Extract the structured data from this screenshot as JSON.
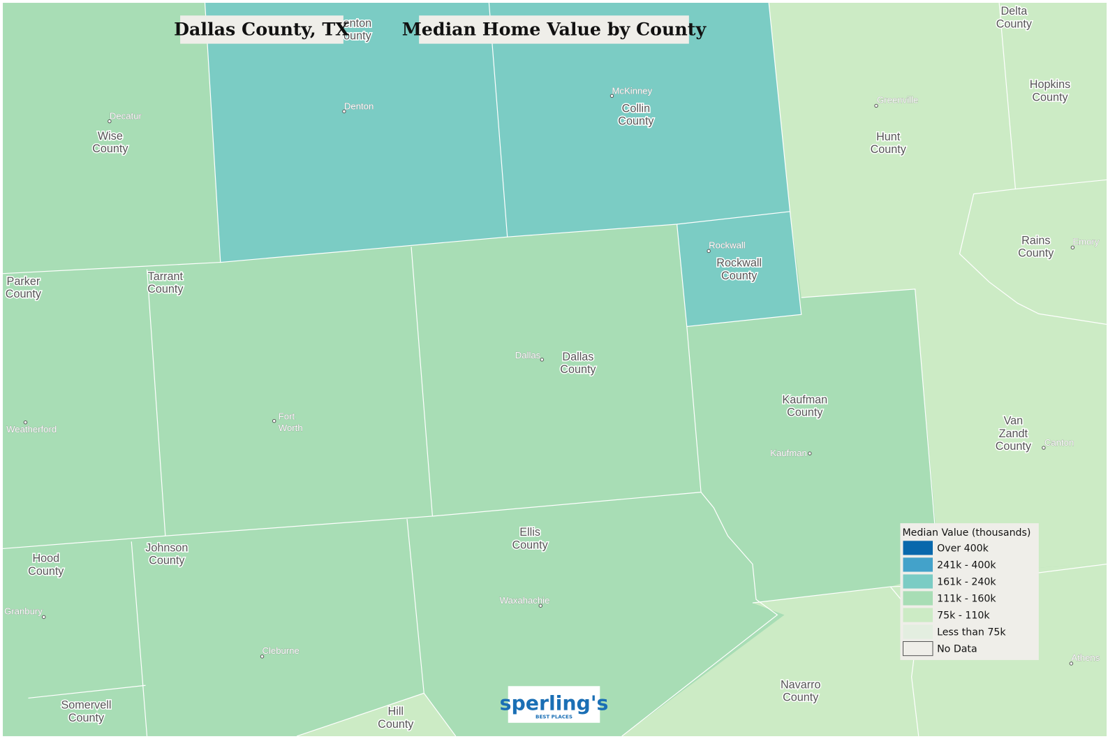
{
  "header": {
    "title": "Dallas County, TX",
    "subtitle": "Median Home Value by County"
  },
  "counties": [
    {
      "lines": [
        "Wise",
        "County"
      ]
    },
    {
      "lines": [
        "Denton",
        "County"
      ]
    },
    {
      "lines": [
        "Collin",
        "County"
      ]
    },
    {
      "lines": [
        "Hunt",
        "County"
      ]
    },
    {
      "lines": [
        "Delta",
        "County"
      ]
    },
    {
      "lines": [
        "Hopkins",
        "County"
      ]
    },
    {
      "lines": [
        "Rains",
        "County"
      ]
    },
    {
      "lines": [
        "Parker",
        "County"
      ]
    },
    {
      "lines": [
        "Tarrant",
        "County"
      ]
    },
    {
      "lines": [
        "Dallas",
        "County"
      ]
    },
    {
      "lines": [
        "Rockwall",
        "County"
      ]
    },
    {
      "lines": [
        "Kaufman",
        "County"
      ]
    },
    {
      "lines": [
        "Van",
        "Zandt",
        "County"
      ]
    },
    {
      "lines": [
        "Hood",
        "County"
      ]
    },
    {
      "lines": [
        "Johnson",
        "County"
      ]
    },
    {
      "lines": [
        "Ellis",
        "County"
      ]
    },
    {
      "lines": [
        "Somervell",
        "County"
      ]
    },
    {
      "lines": [
        "Hill",
        "County"
      ]
    },
    {
      "lines": [
        "Navarro",
        "County"
      ]
    }
  ],
  "cities": [
    {
      "lines": [
        "Decatur"
      ]
    },
    {
      "lines": [
        "Denton"
      ]
    },
    {
      "lines": [
        "McKinney"
      ]
    },
    {
      "lines": [
        "Greenville"
      ]
    },
    {
      "lines": [
        "Emory"
      ]
    },
    {
      "lines": [
        "Rockwall"
      ]
    },
    {
      "lines": [
        "Dallas"
      ]
    },
    {
      "lines": [
        "Weatherford"
      ]
    },
    {
      "lines": [
        "Fort",
        "Worth"
      ]
    },
    {
      "lines": [
        "Kaufman"
      ]
    },
    {
      "lines": [
        "Canton"
      ]
    },
    {
      "lines": [
        "Granbury"
      ]
    },
    {
      "lines": [
        "Cleburne"
      ]
    },
    {
      "lines": [
        "Waxahachie"
      ]
    },
    {
      "lines": [
        "Athens"
      ]
    }
  ],
  "legend": {
    "title": "Median Value (thousands)",
    "items": [
      {
        "label": "Over 400k",
        "color": "#0868ac"
      },
      {
        "label": "241k - 400k",
        "color": "#43a2ca"
      },
      {
        "label": "161k - 240k",
        "color": "#7bccc4"
      },
      {
        "label": "111k - 160k",
        "color": "#a8ddb5"
      },
      {
        "label": "75k - 110k",
        "color": "#ccebc5"
      },
      {
        "label": "Less than 75k",
        "color": "#e3eee0"
      },
      {
        "label": "No Data",
        "color": "#efeee9"
      }
    ]
  },
  "logo": {
    "name": "sperling's",
    "tagline": "BEST PLACES"
  }
}
